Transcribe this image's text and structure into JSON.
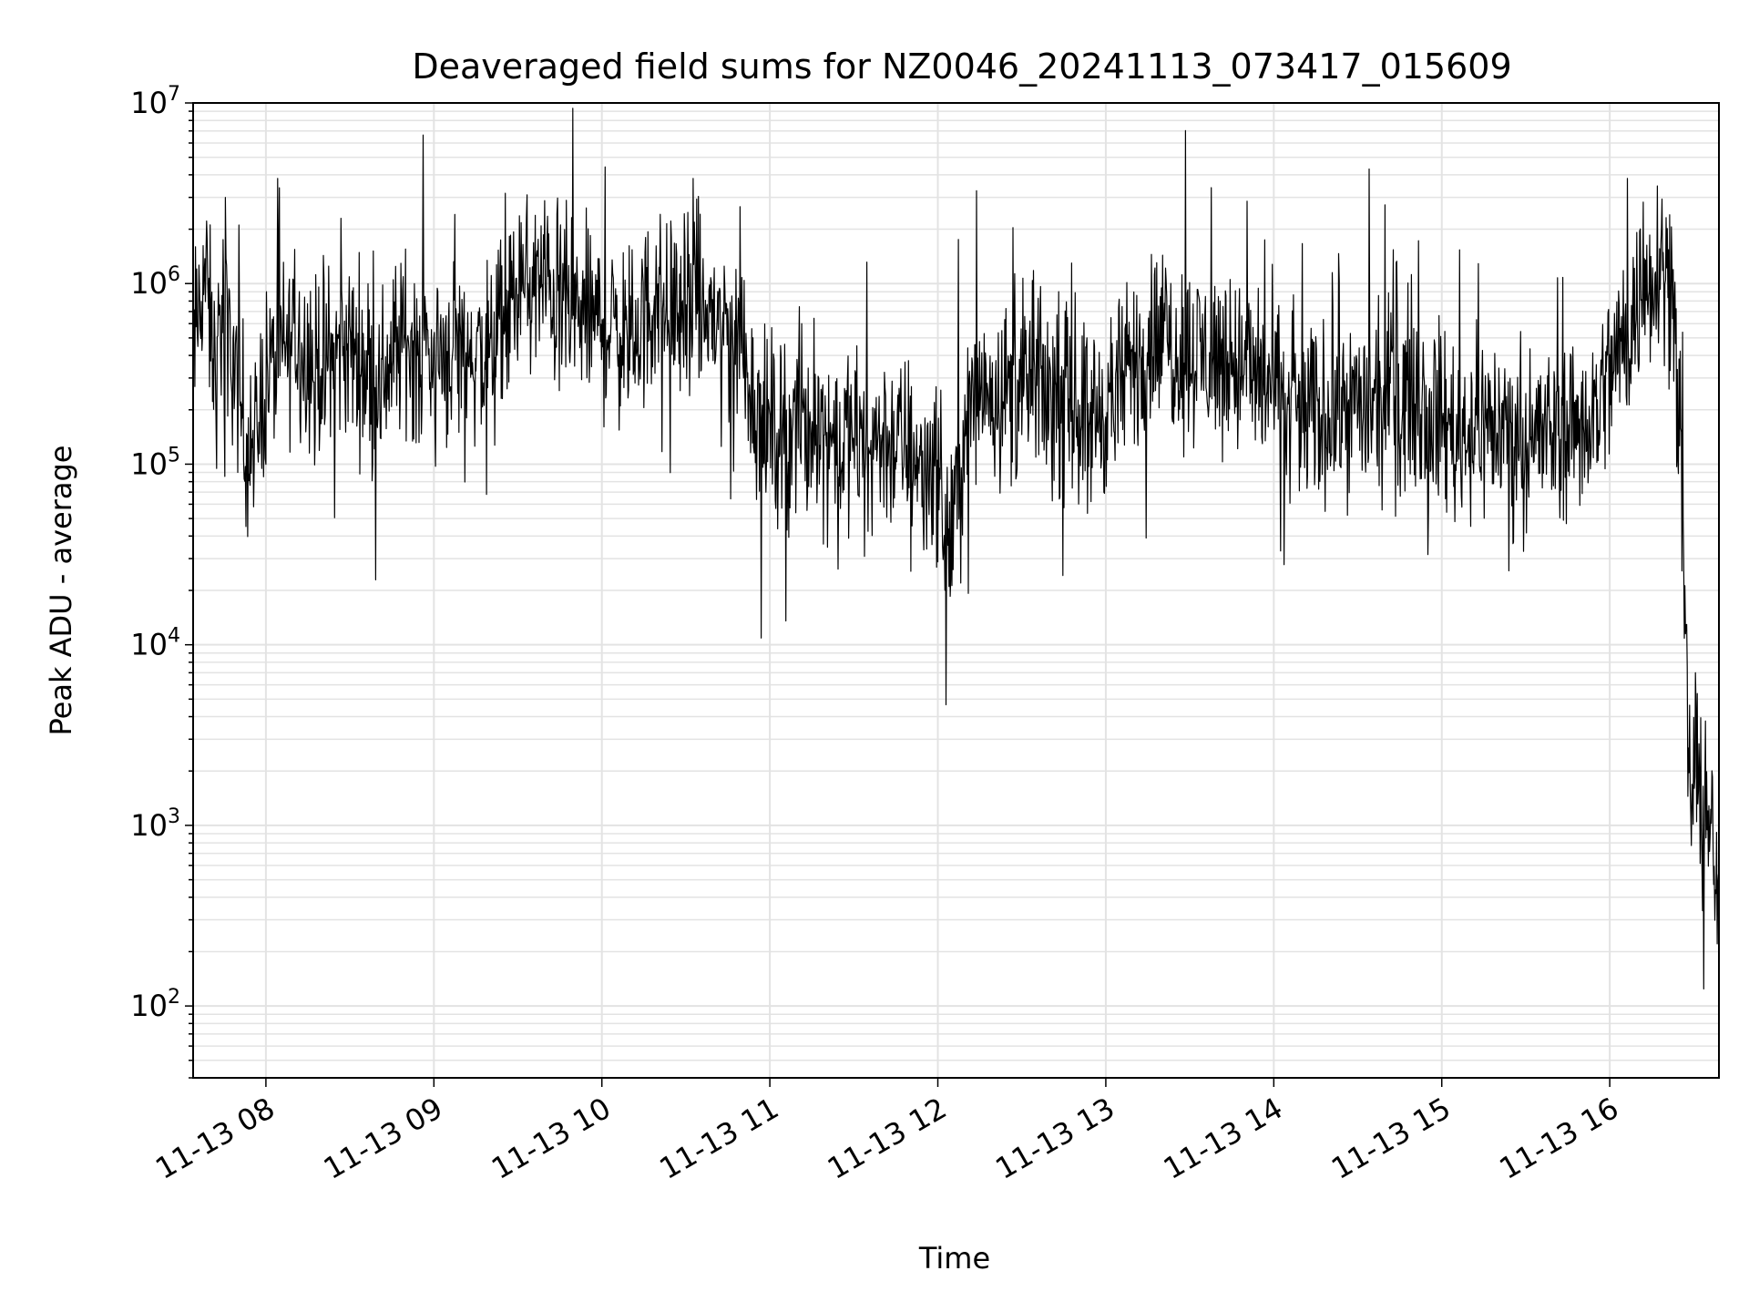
{
  "chart_data": {
    "type": "line",
    "title": "Deaveraged field sums for NZ0046_20241113_073417_015609",
    "xlabel": "Time",
    "ylabel": "Peak ADU - average",
    "yscale": "log",
    "ylim": [
      40,
      10000000
    ],
    "xlim": [
      "2024-11-13 07:34",
      "2024-11-13 16:39"
    ],
    "x_ticks": [
      {
        "value": "2024-11-13 08:00",
        "label": "11-13 08"
      },
      {
        "value": "2024-11-13 09:00",
        "label": "11-13 09"
      },
      {
        "value": "2024-11-13 10:00",
        "label": "11-13 10"
      },
      {
        "value": "2024-11-13 11:00",
        "label": "11-13 11"
      },
      {
        "value": "2024-11-13 12:00",
        "label": "11-13 12"
      },
      {
        "value": "2024-11-13 13:00",
        "label": "11-13 13"
      },
      {
        "value": "2024-11-13 14:00",
        "label": "11-13 14"
      },
      {
        "value": "2024-11-13 15:00",
        "label": "11-13 15"
      },
      {
        "value": "2024-11-13 16:00",
        "label": "11-13 16"
      }
    ],
    "y_ticks": [
      {
        "value": 100,
        "base": "10",
        "exp": "2"
      },
      {
        "value": 1000,
        "base": "10",
        "exp": "3"
      },
      {
        "value": 10000,
        "base": "10",
        "exp": "4"
      },
      {
        "value": 100000,
        "base": "10",
        "exp": "5"
      },
      {
        "value": 1000000,
        "base": "10",
        "exp": "6"
      },
      {
        "value": 10000000,
        "base": "10",
        "exp": "7"
      }
    ],
    "grid": true,
    "line_color": "#000000",
    "series": [
      {
        "points": [
          [
            "2024-11-13 07:34",
            400000
          ],
          [
            "2024-11-13 07:38",
            1200000
          ],
          [
            "2024-11-13 07:42",
            300000
          ],
          [
            "2024-11-13 07:45",
            900000
          ],
          [
            "2024-11-13 07:50",
            250000
          ],
          [
            "2024-11-13 07:55",
            120000
          ],
          [
            "2024-11-13 08:00",
            300000
          ],
          [
            "2024-11-13 08:10",
            500000
          ],
          [
            "2024-11-13 08:20",
            350000
          ],
          [
            "2024-11-13 08:30",
            450000
          ],
          [
            "2024-11-13 08:40",
            300000
          ],
          [
            "2024-11-13 08:50",
            500000
          ],
          [
            "2024-11-13 09:00",
            400000
          ],
          [
            "2024-11-13 09:10",
            450000
          ],
          [
            "2024-11-13 09:20",
            380000
          ],
          [
            "2024-11-13 09:30",
            900000
          ],
          [
            "2024-11-13 09:40",
            1000000
          ],
          [
            "2024-11-13 09:50",
            700000
          ],
          [
            "2024-11-13 10:00",
            600000
          ],
          [
            "2024-11-13 10:10",
            500000
          ],
          [
            "2024-11-13 10:20",
            800000
          ],
          [
            "2024-11-13 10:30",
            700000
          ],
          [
            "2024-11-13 10:40",
            650000
          ],
          [
            "2024-11-13 10:50",
            500000
          ],
          [
            "2024-11-13 10:55",
            200000
          ],
          [
            "2024-11-13 11:00",
            150000
          ],
          [
            "2024-11-13 11:10",
            180000
          ],
          [
            "2024-11-13 11:20",
            150000
          ],
          [
            "2024-11-13 11:30",
            130000
          ],
          [
            "2024-11-13 11:40",
            140000
          ],
          [
            "2024-11-13 11:50",
            120000
          ],
          [
            "2024-11-13 12:00",
            100000
          ],
          [
            "2024-11-13 12:03",
            30000
          ],
          [
            "2024-11-13 12:08",
            100000
          ],
          [
            "2024-11-13 12:15",
            300000
          ],
          [
            "2024-11-13 12:25",
            250000
          ],
          [
            "2024-11-13 12:35",
            280000
          ],
          [
            "2024-11-13 12:45",
            220000
          ],
          [
            "2024-11-13 12:55",
            180000
          ],
          [
            "2024-11-13 13:05",
            250000
          ],
          [
            "2024-11-13 13:15",
            500000
          ],
          [
            "2024-11-13 13:25",
            450000
          ],
          [
            "2024-11-13 13:35",
            400000
          ],
          [
            "2024-11-13 13:45",
            380000
          ],
          [
            "2024-11-13 13:55",
            300000
          ],
          [
            "2024-11-13 14:05",
            200000
          ],
          [
            "2024-11-13 14:15",
            180000
          ],
          [
            "2024-11-13 14:25",
            220000
          ],
          [
            "2024-11-13 14:35",
            200000
          ],
          [
            "2024-11-13 14:45",
            250000
          ],
          [
            "2024-11-13 14:55",
            230000
          ],
          [
            "2024-11-13 15:05",
            150000
          ],
          [
            "2024-11-13 15:15",
            170000
          ],
          [
            "2024-11-13 15:25",
            150000
          ],
          [
            "2024-11-13 15:35",
            140000
          ],
          [
            "2024-11-13 15:45",
            160000
          ],
          [
            "2024-11-13 15:55",
            200000
          ],
          [
            "2024-11-13 16:05",
            500000
          ],
          [
            "2024-11-13 16:12",
            900000
          ],
          [
            "2024-11-13 16:18",
            1500000
          ],
          [
            "2024-11-13 16:22",
            1000000
          ],
          [
            "2024-11-13 16:24",
            300000
          ],
          [
            "2024-11-13 16:26",
            50000
          ],
          [
            "2024-11-13 16:28",
            2000
          ],
          [
            "2024-11-13 16:31",
            1500
          ],
          [
            "2024-11-13 16:34",
            1200
          ],
          [
            "2024-11-13 16:36",
            900
          ],
          [
            "2024-11-13 16:38",
            500
          ],
          [
            "2024-11-13 16:39",
            250
          ]
        ]
      }
    ]
  }
}
